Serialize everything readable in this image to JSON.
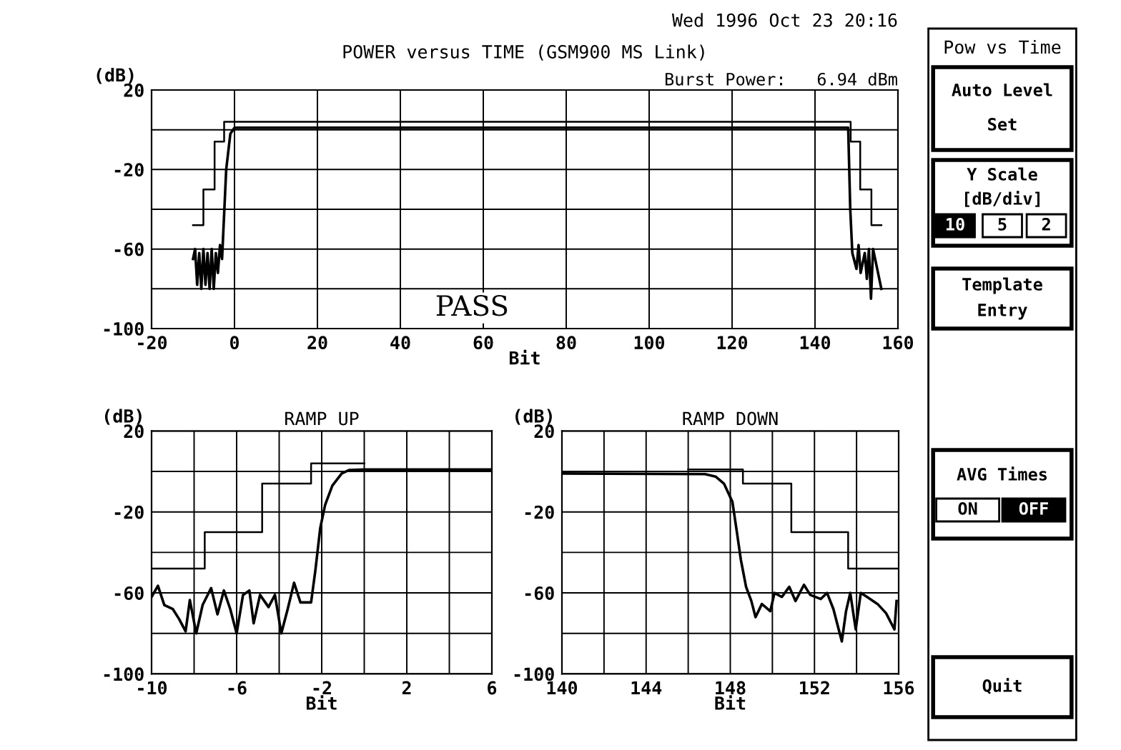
{
  "chart_data": [
    {
      "type": "line",
      "title": "POWER versus TIME (GSM900 MS Link)",
      "xlabel": "Bit",
      "ylabel": "(dB)",
      "xlim": [
        -20,
        160
      ],
      "xticks": [
        -20,
        0,
        20,
        40,
        60,
        80,
        100,
        120,
        140,
        160
      ],
      "ylim": [
        -100,
        20
      ],
      "yticks": [
        20,
        {
          "value": 0,
          "label": null
        },
        -20,
        {
          "value": -40,
          "label": null
        },
        -60,
        {
          "value": -80,
          "label": null
        },
        -100
      ],
      "grid": true,
      "legend": false,
      "annotations": [
        "Wed 1996 Oct 23 20:16",
        "Burst Power:   6.94 dBm",
        "PASS"
      ],
      "series": [
        {
          "type": "step",
          "color": "#000000",
          "x": [
            -10,
            -7.5,
            -4.8,
            -2.5,
            148.6,
            150.9,
            153.6,
            156
          ],
          "values": [
            -48,
            -30,
            -6,
            4,
            -6,
            -30,
            -48,
            -48
          ]
        },
        {
          "type": "line",
          "color": "#000000",
          "x": [
            -10,
            -9.5,
            -9,
            -8.5,
            -8,
            -7.5,
            -7,
            -6.5,
            -6,
            -5.5,
            -5,
            -4.5,
            -4,
            -3.5,
            -3,
            -2,
            -1,
            0,
            148,
            148.5,
            149,
            150,
            150.5,
            151,
            152,
            152.5,
            153,
            153.5,
            154,
            155,
            156
          ],
          "values": [
            -65,
            -60,
            -78,
            -62,
            -80,
            -60,
            -78,
            -62,
            -80,
            -60,
            -80,
            -62,
            -72,
            -58,
            -65,
            -20,
            -2,
            1,
            1,
            -40,
            -62,
            -70,
            -58,
            -72,
            -62,
            -75,
            -60,
            -85,
            -60,
            -70,
            -80
          ]
        }
      ]
    },
    {
      "type": "line",
      "title": "RAMP UP",
      "xlabel": "Bit",
      "ylabel": "(dB)",
      "xlim": [
        -10,
        6
      ],
      "xticks": [
        -10,
        {
          "value": -8,
          "label": null
        },
        -6,
        {
          "value": -4,
          "label": null
        },
        -2,
        {
          "value": 0,
          "label": null
        },
        2,
        {
          "value": 4,
          "label": null
        },
        6
      ],
      "ylim": [
        -100,
        20
      ],
      "yticks": [
        20,
        {
          "value": 0,
          "label": null
        },
        -20,
        {
          "value": -40,
          "label": null
        },
        -60,
        {
          "value": -80,
          "label": null
        },
        -100
      ],
      "grid": true,
      "legend": false,
      "series": [
        {
          "type": "step",
          "color": "#000000",
          "x": [
            -10,
            -7.5,
            -4.8,
            -2.5,
            0
          ],
          "values": [
            -48,
            -30,
            -6,
            4,
            4
          ]
        },
        {
          "type": "line",
          "color": "#000000",
          "x": [
            -10,
            -9.7,
            -9.4,
            -9.0,
            -8.7,
            -8.4,
            -8.2,
            -7.9,
            -7.6,
            -7.2,
            -6.9,
            -6.6,
            -6.3,
            -6.0,
            -5.7,
            -5.4,
            -5.2,
            -4.9,
            -4.5,
            -4.2,
            -3.9,
            -3.6,
            -3.3,
            -3.0,
            -2.5,
            -2.3,
            -2.07,
            -1.84,
            -1.5,
            -1.06,
            -0.72,
            0,
            6
          ],
          "values": [
            -62,
            -56.5,
            -66,
            -68,
            -73,
            -79,
            -63.5,
            -80,
            -66,
            -57.6,
            -70.6,
            -58.8,
            -68,
            -80,
            -61,
            -58.8,
            -75,
            -61,
            -67,
            -61,
            -80,
            -68,
            -55,
            -64.7,
            -64.7,
            -49,
            -28,
            -16.5,
            -7,
            -1,
            0.7,
            1,
            1
          ]
        }
      ]
    },
    {
      "type": "line",
      "title": "RAMP DOWN",
      "xlabel": "Bit",
      "ylabel": "(dB)",
      "xlim": [
        140,
        156
      ],
      "xticks": [
        140,
        {
          "value": 142,
          "label": null
        },
        144,
        {
          "value": 146,
          "label": null
        },
        148,
        {
          "value": 150,
          "label": null
        },
        152,
        {
          "value": 154,
          "label": null
        },
        156
      ],
      "ylim": [
        -100,
        20
      ],
      "yticks": [
        20,
        {
          "value": 0,
          "label": null
        },
        -20,
        {
          "value": -40,
          "label": null
        },
        -60,
        {
          "value": -80,
          "label": null
        },
        -100
      ],
      "grid": true,
      "legend": false,
      "series": [
        {
          "type": "step",
          "color": "#000000",
          "x": [
            146,
            148.6,
            150.9,
            153.6,
            156
          ],
          "values": [
            1,
            -6,
            -30,
            -48,
            -48
          ]
        },
        {
          "type": "line",
          "color": "#000000",
          "x": [
            140,
            146.8,
            147.3,
            147.7,
            148.1,
            148.3,
            148.5,
            148.75,
            149.0,
            149.2,
            149.5,
            149.9,
            150.1,
            150.45,
            150.8,
            151.1,
            151.5,
            151.8,
            152.3,
            152.6,
            152.9,
            153.3,
            153.5,
            153.7,
            153.96,
            154.2,
            154.5,
            155.0,
            155.4,
            155.8,
            155.9
          ],
          "values": [
            -1,
            -1.3,
            -2.5,
            -6,
            -15,
            -29,
            -43.5,
            -57,
            -64,
            -72,
            -65.5,
            -69,
            -60,
            -62,
            -57,
            -64,
            -56,
            -61,
            -63,
            -60,
            -68,
            -84,
            -69,
            -60,
            -78,
            -60,
            -62,
            -65.5,
            -70,
            -78,
            -64
          ]
        }
      ]
    },
    {
      "type": "other",
      "title": "Pow vs Time",
      "annotations": [
        "Auto Level",
        "Set",
        "Y Scale",
        "[dB/div]",
        "10",
        "5",
        "2",
        "Template",
        "Entry",
        "AVG Times",
        "ON",
        "OFF",
        "Quit"
      ]
    }
  ]
}
